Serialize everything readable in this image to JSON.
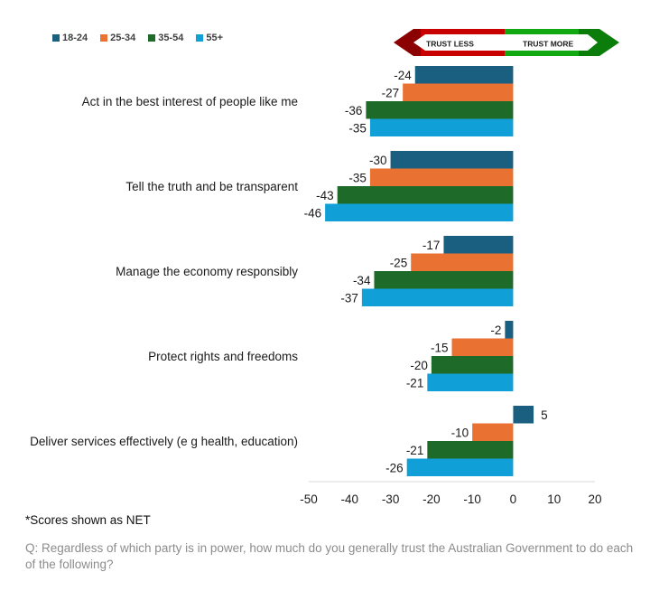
{
  "chart_data": {
    "type": "bar",
    "orientation": "horizontal",
    "title": "",
    "xlabel": "",
    "ylabel": "",
    "xlim": [
      -50,
      20
    ],
    "xticks": [
      -50,
      -40,
      -30,
      -20,
      -10,
      0,
      10,
      20
    ],
    "grid": false,
    "legend_position": "top-left",
    "categories": [
      "Act in the best interest of people like me",
      "Tell the truth and be transparent",
      "Manage the economy responsibly",
      "Protect rights and freedoms",
      "Deliver services effectively (e g  health, education)"
    ],
    "series": [
      {
        "name": "18-24",
        "color": "#1a5f80",
        "values": [
          -24,
          -30,
          -17,
          -2,
          5
        ]
      },
      {
        "name": "25-34",
        "color": "#e97132",
        "values": [
          -27,
          -35,
          -25,
          -15,
          -10
        ]
      },
      {
        "name": "35-54",
        "color": "#1e6b29",
        "values": [
          -36,
          -43,
          -34,
          -20,
          -21
        ]
      },
      {
        "name": "55+",
        "color": "#119fd7",
        "values": [
          -35,
          -46,
          -37,
          -21,
          -26
        ]
      }
    ],
    "annotations": {
      "trust_less": "TRUST LESS",
      "trust_more": "TRUST MORE"
    }
  },
  "banner_colors": {
    "less_dark": "#8b0000",
    "less": "#c80000",
    "more": "#12a812",
    "more_dark": "#0a7d0a"
  },
  "footnote": "*Scores shown as NET",
  "question": "Q: Regardless of which party is in power, how much do you generally trust the Australian Government to do each of the following?"
}
